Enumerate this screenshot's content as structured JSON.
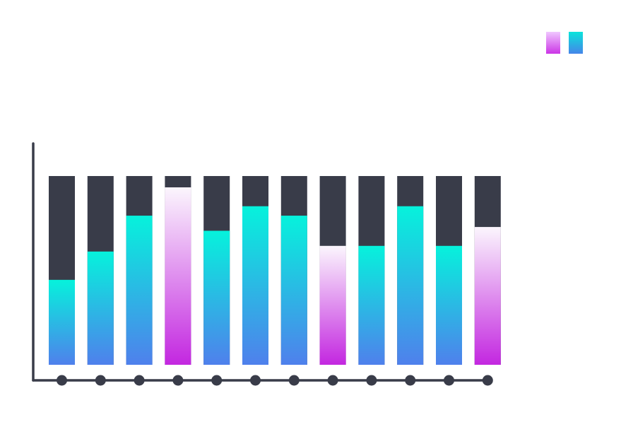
{
  "chart_data": {
    "type": "bar",
    "stacked": true,
    "categories": [
      "",
      "",
      "",
      "",
      "",
      "",
      "",
      "",
      "",
      "",
      "",
      ""
    ],
    "highlight": [
      false,
      false,
      false,
      true,
      false,
      false,
      false,
      true,
      false,
      false,
      false,
      true
    ],
    "values": [
      45,
      60,
      79,
      94,
      71,
      84,
      79,
      63,
      63,
      84,
      63,
      73
    ],
    "ylim": [
      0,
      100
    ],
    "grid": false,
    "legend": {
      "placement": "top-right",
      "entries": 2
    },
    "colors": {
      "track": "#393c49",
      "axis": "#393c49",
      "cyan_top": "#06f2dc",
      "cyan_bottom": "#4f80ec",
      "magenta_top": "#fbf6fd",
      "magenta_bottom": "#c327e0",
      "legend_magenta_top": "#f0c7ff",
      "legend_magenta_bottom": "#cb35e6",
      "legend_cyan_top": "#0ae4db",
      "legend_cyan_bottom": "#4585e9"
    }
  }
}
